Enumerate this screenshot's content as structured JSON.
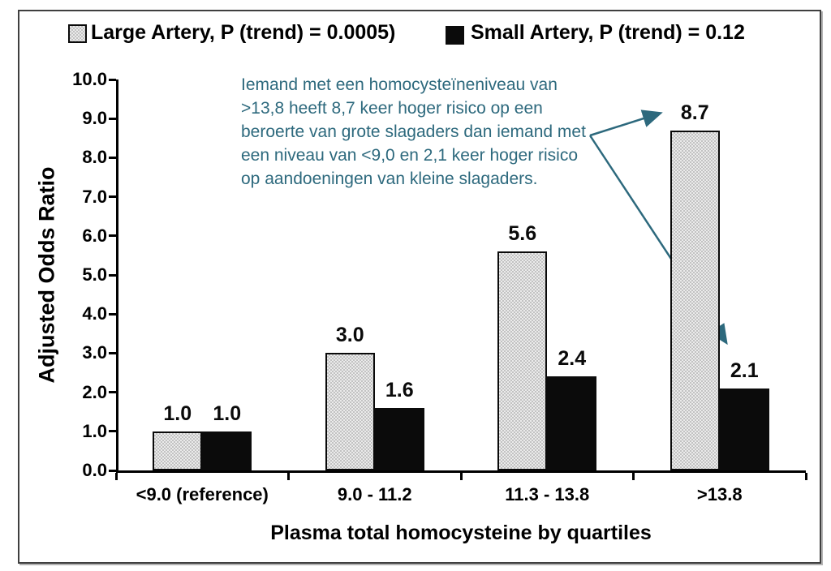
{
  "legend": {
    "large_label": "Large Artery, P (trend) = 0.0005)",
    "small_label": "Small Artery, P (trend) = 0.12"
  },
  "annotation": {
    "lines": [
      "Iemand met een homocysteïneniveau van",
      ">13,8 heeft 8,7 keer hoger risico op een",
      "beroerte van grote slagaders dan iemand met",
      "een niveau van <9,0 en 2,1 keer hoger risico",
      "op aandoeningen van kleine slagaders."
    ]
  },
  "colors": {
    "annotation_teal": "#2D697D",
    "bar_large_fill": "#d9d9d9",
    "bar_small_fill": "#0b0b0b",
    "axis_black": "#000000"
  },
  "chart_data": {
    "type": "bar",
    "title": "",
    "categories": [
      "<9.0 (reference)",
      "9.0 - 11.2",
      "11.3 - 13.8",
      ">13.8"
    ],
    "series": [
      {
        "name": "Large Artery",
        "p_trend": "0.0005",
        "values": [
          1.0,
          3.0,
          5.6,
          8.7
        ],
        "value_labels": [
          "1.0",
          "3.0",
          "5.6",
          "8.7"
        ],
        "style": "checkered-gray"
      },
      {
        "name": "Small Artery",
        "p_trend": "0.12",
        "values": [
          1.0,
          1.6,
          2.4,
          2.1
        ],
        "value_labels": [
          "1.0",
          "1.6",
          "2.4",
          "2.1"
        ],
        "style": "solid-black"
      }
    ],
    "xlabel": "Plasma total homocysteine by quartiles",
    "ylabel": "Adjusted Odds Ratio",
    "ylim": [
      0,
      10
    ],
    "ytick_step": 1.0,
    "ytick_labels": [
      "0.0",
      "1.0",
      "2.0",
      "3.0",
      "4.0",
      "5.0",
      "6.0",
      "7.0",
      "8.0",
      "9.0",
      "10.0"
    ],
    "legend_position": "top",
    "grid": false
  }
}
